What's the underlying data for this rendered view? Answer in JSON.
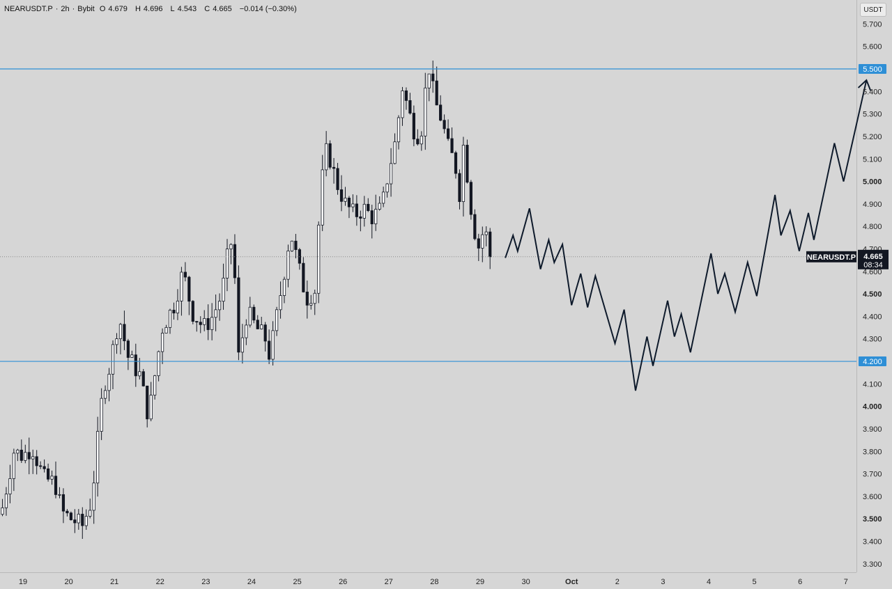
{
  "header": {
    "symbol": "NEARUSDT.P",
    "interval": "2h",
    "exchange": "Bybit",
    "open_label": "O",
    "open": "4.679",
    "high_label": "H",
    "high": "4.696",
    "low_label": "L",
    "low": "4.543",
    "close_label": "C",
    "close": "4.665",
    "change": "−0.014 (−0.30%)"
  },
  "currency_button": "USDT",
  "colors": {
    "background": "#d6d6d6",
    "candle_dark": "#131722",
    "candle_light": "#ffffff",
    "level_line": "#2e8fd6",
    "projection": "#0e1a2b"
  },
  "chart_data": {
    "type": "candlestick",
    "title": "",
    "xlabel": "",
    "ylabel": "",
    "ylim": [
      3.25,
      5.76
    ],
    "y_ticks": [
      "5.700",
      "5.600",
      "5.500",
      "5.400",
      "5.300",
      "5.200",
      "5.100",
      "5.000",
      "4.900",
      "4.800",
      "4.700",
      "4.600",
      "4.500",
      "4.400",
      "4.300",
      "4.200",
      "4.100",
      "4.000",
      "3.900",
      "3.800",
      "3.700",
      "3.600",
      "3.500",
      "3.400",
      "3.300"
    ],
    "x_ticks": [
      {
        "label": "19",
        "day": 19
      },
      {
        "label": "20",
        "day": 20
      },
      {
        "label": "21",
        "day": 21
      },
      {
        "label": "22",
        "day": 22
      },
      {
        "label": "23",
        "day": 23
      },
      {
        "label": "24",
        "day": 24
      },
      {
        "label": "25",
        "day": 25
      },
      {
        "label": "26",
        "day": 26
      },
      {
        "label": "27",
        "day": 27
      },
      {
        "label": "28",
        "day": 28
      },
      {
        "label": "29",
        "day": 29
      },
      {
        "label": "30",
        "day": 30
      },
      {
        "label": "Oct",
        "day": 31
      },
      {
        "label": "2",
        "day": 32
      },
      {
        "label": "3",
        "day": 33
      },
      {
        "label": "4",
        "day": 34
      },
      {
        "label": "5",
        "day": 35
      },
      {
        "label": "6",
        "day": 36
      },
      {
        "label": "7",
        "day": 37
      }
    ],
    "levels": [
      {
        "value": 5.5,
        "label": "5.500"
      },
      {
        "value": 4.2,
        "label": "4.200"
      }
    ],
    "current_price": {
      "symbol": "NEARUSDT.P",
      "value": "4.665",
      "timer": "08:34"
    },
    "ohlc_anchors": [
      {
        "day": 18.55,
        "close": 3.55
      },
      {
        "day": 18.8,
        "close": 3.8
      },
      {
        "day": 19.0,
        "close": 3.78
      },
      {
        "day": 19.2,
        "close": 3.82
      },
      {
        "day": 19.45,
        "close": 3.68
      },
      {
        "day": 19.7,
        "close": 3.66
      },
      {
        "day": 19.85,
        "close": 3.53
      },
      {
        "day": 20.05,
        "close": 3.5
      },
      {
        "day": 20.3,
        "close": 3.47
      },
      {
        "day": 20.5,
        "close": 3.58
      },
      {
        "day": 20.65,
        "close": 3.88
      },
      {
        "day": 20.75,
        "close": 4.08
      },
      {
        "day": 20.9,
        "close": 4.18
      },
      {
        "day": 21.1,
        "close": 4.4
      },
      {
        "day": 21.3,
        "close": 4.22
      },
      {
        "day": 21.55,
        "close": 4.14
      },
      {
        "day": 21.75,
        "close": 3.95
      },
      {
        "day": 21.9,
        "close": 4.16
      },
      {
        "day": 22.05,
        "close": 4.35
      },
      {
        "day": 22.3,
        "close": 4.45
      },
      {
        "day": 22.5,
        "close": 4.6
      },
      {
        "day": 22.7,
        "close": 4.42
      },
      {
        "day": 22.95,
        "close": 4.35
      },
      {
        "day": 23.15,
        "close": 4.4
      },
      {
        "day": 23.35,
        "close": 4.5
      },
      {
        "day": 23.5,
        "close": 4.7
      },
      {
        "day": 23.6,
        "close": 4.75
      },
      {
        "day": 23.7,
        "close": 4.2
      },
      {
        "day": 23.9,
        "close": 4.42
      },
      {
        "day": 24.1,
        "close": 4.35
      },
      {
        "day": 24.3,
        "close": 4.3
      },
      {
        "day": 24.4,
        "close": 4.22
      },
      {
        "day": 24.55,
        "close": 4.4
      },
      {
        "day": 24.7,
        "close": 4.58
      },
      {
        "day": 24.85,
        "close": 4.78
      },
      {
        "day": 25.05,
        "close": 4.6
      },
      {
        "day": 25.2,
        "close": 4.48
      },
      {
        "day": 25.4,
        "close": 4.52
      },
      {
        "day": 25.5,
        "close": 4.95
      },
      {
        "day": 25.65,
        "close": 5.15
      },
      {
        "day": 25.85,
        "close": 5.0
      },
      {
        "day": 26.05,
        "close": 4.9
      },
      {
        "day": 26.25,
        "close": 4.85
      },
      {
        "day": 26.45,
        "close": 4.88
      },
      {
        "day": 26.65,
        "close": 4.84
      },
      {
        "day": 26.85,
        "close": 4.88
      },
      {
        "day": 27.0,
        "close": 5.05
      },
      {
        "day": 27.15,
        "close": 5.18
      },
      {
        "day": 27.3,
        "close": 5.42
      },
      {
        "day": 27.45,
        "close": 5.3
      },
      {
        "day": 27.6,
        "close": 5.2
      },
      {
        "day": 27.75,
        "close": 5.25
      },
      {
        "day": 27.85,
        "close": 5.55
      },
      {
        "day": 28.0,
        "close": 5.36
      },
      {
        "day": 28.15,
        "close": 5.28
      },
      {
        "day": 28.3,
        "close": 5.15
      },
      {
        "day": 28.45,
        "close": 5.08
      },
      {
        "day": 28.55,
        "close": 4.95
      },
      {
        "day": 28.65,
        "close": 5.2
      },
      {
        "day": 28.75,
        "close": 4.95
      },
      {
        "day": 28.85,
        "close": 4.82
      },
      {
        "day": 28.95,
        "close": 4.7
      },
      {
        "day": 29.1,
        "close": 4.8
      },
      {
        "day": 29.2,
        "close": 4.68
      },
      {
        "day": 29.28,
        "close": 4.665
      }
    ],
    "projection": [
      {
        "day": 29.55,
        "price": 4.66
      },
      {
        "day": 29.72,
        "price": 4.76
      },
      {
        "day": 29.82,
        "price": 4.69
      },
      {
        "day": 30.08,
        "price": 4.88
      },
      {
        "day": 30.32,
        "price": 4.61
      },
      {
        "day": 30.5,
        "price": 4.74
      },
      {
        "day": 30.62,
        "price": 4.64
      },
      {
        "day": 30.8,
        "price": 4.72
      },
      {
        "day": 31.0,
        "price": 4.45
      },
      {
        "day": 31.2,
        "price": 4.59
      },
      {
        "day": 31.35,
        "price": 4.44
      },
      {
        "day": 31.52,
        "price": 4.58
      },
      {
        "day": 31.95,
        "price": 4.28
      },
      {
        "day": 32.15,
        "price": 4.43
      },
      {
        "day": 32.4,
        "price": 4.07
      },
      {
        "day": 32.65,
        "price": 4.31
      },
      {
        "day": 32.78,
        "price": 4.18
      },
      {
        "day": 33.1,
        "price": 4.47
      },
      {
        "day": 33.25,
        "price": 4.31
      },
      {
        "day": 33.4,
        "price": 4.41
      },
      {
        "day": 33.6,
        "price": 4.24
      },
      {
        "day": 34.05,
        "price": 4.68
      },
      {
        "day": 34.2,
        "price": 4.5
      },
      {
        "day": 34.35,
        "price": 4.59
      },
      {
        "day": 34.58,
        "price": 4.42
      },
      {
        "day": 34.85,
        "price": 4.64
      },
      {
        "day": 35.05,
        "price": 4.49
      },
      {
        "day": 35.45,
        "price": 4.94
      },
      {
        "day": 35.58,
        "price": 4.76
      },
      {
        "day": 35.78,
        "price": 4.87
      },
      {
        "day": 35.98,
        "price": 4.69
      },
      {
        "day": 36.18,
        "price": 4.86
      },
      {
        "day": 36.3,
        "price": 4.74
      },
      {
        "day": 36.75,
        "price": 5.17
      },
      {
        "day": 36.95,
        "price": 5.0
      },
      {
        "day": 37.45,
        "price": 5.45
      }
    ]
  }
}
